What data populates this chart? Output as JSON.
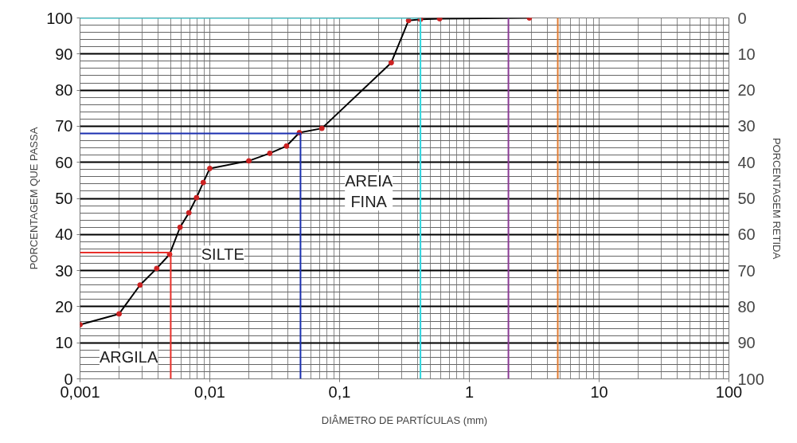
{
  "chart_data": {
    "type": "line",
    "log": "x",
    "xlabel": "DIÂMETRO DE PARTÍCULAS (mm)",
    "ylabel": "PORCENTAGEM QUE PASSA",
    "y2label": "PORCENTAGEM RETIDA",
    "xlim": [
      0.001,
      100
    ],
    "ylim": [
      0,
      100
    ],
    "y2lim": [
      100,
      0
    ],
    "xticks": [
      {
        "value": 0.001,
        "label": "0,001"
      },
      {
        "value": 0.002,
        "label": null
      },
      {
        "value": 0.003,
        "label": null
      },
      {
        "value": 0.004,
        "label": null
      },
      {
        "value": 0.005,
        "label": null
      },
      {
        "value": 0.006,
        "label": null
      },
      {
        "value": 0.007,
        "label": null
      },
      {
        "value": 0.008,
        "label": null
      },
      {
        "value": 0.009,
        "label": null
      },
      {
        "value": 0.01,
        "label": "0,01"
      },
      {
        "value": 0.02,
        "label": null
      },
      {
        "value": 0.03,
        "label": null
      },
      {
        "value": 0.04,
        "label": null
      },
      {
        "value": 0.05,
        "label": null
      },
      {
        "value": 0.06,
        "label": null
      },
      {
        "value": 0.07,
        "label": null
      },
      {
        "value": 0.08,
        "label": null
      },
      {
        "value": 0.09,
        "label": null
      },
      {
        "value": 0.1,
        "label": "0,1"
      },
      {
        "value": 0.2,
        "label": null
      },
      {
        "value": 0.3,
        "label": null
      },
      {
        "value": 0.4,
        "label": null
      },
      {
        "value": 0.5,
        "label": null
      },
      {
        "value": 0.6,
        "label": null
      },
      {
        "value": 0.7,
        "label": null
      },
      {
        "value": 0.8,
        "label": null
      },
      {
        "value": 0.9,
        "label": null
      },
      1,
      {
        "value": 2,
        "label": null
      },
      {
        "value": 3,
        "label": null
      },
      {
        "value": 4,
        "label": null
      },
      {
        "value": 5,
        "label": null
      },
      {
        "value": 6,
        "label": null
      },
      {
        "value": 7,
        "label": null
      },
      {
        "value": 8,
        "label": null
      },
      {
        "value": 9,
        "label": null
      },
      10,
      {
        "value": 20,
        "label": null
      },
      {
        "value": 30,
        "label": null
      },
      {
        "value": 40,
        "label": null
      },
      {
        "value": 50,
        "label": null
      },
      {
        "value": 60,
        "label": null
      },
      {
        "value": 70,
        "label": null
      },
      {
        "value": 80,
        "label": null
      },
      {
        "value": 90,
        "label": null
      },
      100
    ],
    "yticks": [
      0,
      {
        "value": 2,
        "label": null
      },
      {
        "value": 4,
        "label": null
      },
      {
        "value": 6,
        "label": null
      },
      {
        "value": 8,
        "label": null
      },
      10,
      {
        "value": 12,
        "label": null
      },
      {
        "value": 14,
        "label": null
      },
      {
        "value": 16,
        "label": null
      },
      {
        "value": 18,
        "label": null
      },
      20,
      {
        "value": 22,
        "label": null
      },
      {
        "value": 24,
        "label": null
      },
      {
        "value": 26,
        "label": null
      },
      {
        "value": 28,
        "label": null
      },
      30,
      {
        "value": 32,
        "label": null
      },
      {
        "value": 34,
        "label": null
      },
      {
        "value": 36,
        "label": null
      },
      {
        "value": 38,
        "label": null
      },
      40,
      {
        "value": 42,
        "label": null
      },
      {
        "value": 44,
        "label": null
      },
      {
        "value": 46,
        "label": null
      },
      {
        "value": 48,
        "label": null
      },
      50,
      {
        "value": 52,
        "label": null
      },
      {
        "value": 54,
        "label": null
      },
      {
        "value": 56,
        "label": null
      },
      {
        "value": 58,
        "label": null
      },
      60,
      {
        "value": 62,
        "label": null
      },
      {
        "value": 64,
        "label": null
      },
      {
        "value": 66,
        "label": null
      },
      {
        "value": 68,
        "label": null
      },
      70,
      {
        "value": 72,
        "label": null
      },
      {
        "value": 74,
        "label": null
      },
      {
        "value": 76,
        "label": null
      },
      {
        "value": 78,
        "label": null
      },
      80,
      {
        "value": 82,
        "label": null
      },
      {
        "value": 84,
        "label": null
      },
      {
        "value": 86,
        "label": null
      },
      {
        "value": 88,
        "label": null
      },
      90,
      {
        "value": 92,
        "label": null
      },
      {
        "value": 94,
        "label": null
      },
      {
        "value": 96,
        "label": null
      },
      {
        "value": 98,
        "label": null
      },
      100
    ],
    "y2ticks": [
      0,
      10,
      20,
      30,
      40,
      50,
      60,
      70,
      80,
      90,
      100
    ],
    "grid": true,
    "series": [
      {
        "marker": "none",
        "color": "#000000",
        "x": [
          0.001,
          0.002,
          0.0029,
          0.0039,
          0.0049,
          0.0059,
          0.0069,
          0.0079,
          0.0089,
          0.01,
          0.02,
          0.029,
          0.039,
          0.049,
          0.073,
          0.25,
          0.34,
          0.42,
          0.59,
          2.9
        ],
        "values": [
          15,
          18,
          26,
          30.6,
          34.5,
          42,
          46,
          50.2,
          54.4,
          58.3,
          60.4,
          62.5,
          64.5,
          68.2,
          69.4,
          87.6,
          99.3,
          99.6,
          99.8,
          100
        ]
      },
      {
        "type": "scatter",
        "marker": "circle",
        "color": "#cc2222",
        "x": [
          0.001,
          0.002,
          0.0029,
          0.0039,
          0.0049,
          0.0059,
          0.0069,
          0.0079,
          0.0089,
          0.01,
          0.02,
          0.029,
          0.039,
          0.049,
          0.073,
          0.25,
          0.34,
          0.42,
          0.59,
          2.9
        ],
        "values": [
          15,
          18,
          26,
          30.6,
          34.5,
          42,
          46,
          50.2,
          54.4,
          58.3,
          60.4,
          62.5,
          64.5,
          68.2,
          69.4,
          87.6,
          99.3,
          99.6,
          99.8,
          100
        ]
      },
      {
        "type": "line",
        "marker": "none",
        "color": "#e8302a",
        "x": [
          0.001,
          0.005,
          0.005
        ],
        "values": [
          35,
          35,
          0
        ]
      },
      {
        "type": "line",
        "marker": "none",
        "color": "#1a2fb0",
        "x": [
          0.001,
          0.05,
          0.05
        ],
        "values": [
          68,
          68,
          0
        ]
      },
      {
        "type": "line",
        "marker": "none",
        "color": "#30d8e0",
        "x": [
          0.001,
          0.42,
          0.42
        ],
        "values": [
          100,
          100,
          0
        ]
      }
    ],
    "ref_lines": [
      {
        "axis": "x",
        "value": 2,
        "label": null,
        "color": "#8b3a96"
      },
      {
        "axis": "x",
        "value": 4.8,
        "label": null,
        "color": "#e07a30"
      }
    ],
    "annotations": [
      "ARGILA",
      "SILTE",
      "AREIA\nFINA"
    ]
  }
}
